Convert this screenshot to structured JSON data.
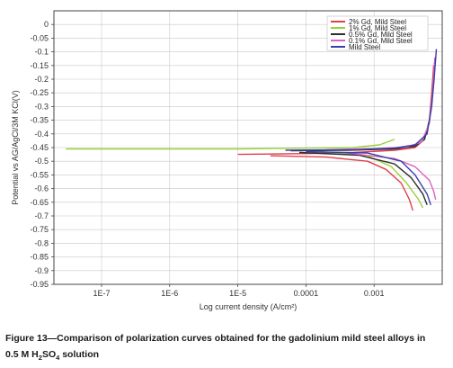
{
  "chart_data": {
    "type": "line",
    "title": "",
    "xlabel": "Log current density (A/cm²)",
    "ylabel": "Potential vs AG/AgCl/3M KCl(V)",
    "xscale": "log",
    "xlim": [
      2e-08,
      0.01
    ],
    "ylim": [
      -0.95,
      0.05
    ],
    "x_ticks": [
      1e-07,
      1e-06,
      1e-05,
      0.0001,
      0.001
    ],
    "x_tick_labels": [
      "1E-7",
      "1E-6",
      "1E-5",
      "0.0001",
      "0.001"
    ],
    "y_ticks": [
      0,
      -0.05,
      -0.1,
      -0.15,
      -0.2,
      -0.25,
      -0.3,
      -0.35,
      -0.4,
      -0.45,
      -0.5,
      -0.55,
      -0.6,
      -0.65,
      -0.7,
      -0.75,
      -0.8,
      -0.85,
      -0.9,
      -0.95
    ],
    "y_tick_labels": [
      "0",
      "-0.05",
      "-0.1",
      "-0.15",
      "-0.2",
      "-0.25",
      "-0.3",
      "-0.35",
      "-0.4",
      "-0.45",
      "-0.5",
      "-0.55",
      "-0.6",
      "-0.65",
      "-0.7",
      "-0.75",
      "-0.8",
      "-0.85",
      "-0.9",
      "-0.95"
    ],
    "grid": true,
    "legend_position": "top-right",
    "series": [
      {
        "name": "2% Gd, Mild Steel",
        "color": "#e0404a",
        "anodic": [
          [
            1e-05,
            -0.475
          ],
          [
            0.0001,
            -0.472
          ],
          [
            0.0005,
            -0.468
          ],
          [
            0.002,
            -0.46
          ],
          [
            0.004,
            -0.45
          ],
          [
            0.0055,
            -0.42
          ],
          [
            0.0065,
            -0.35
          ],
          [
            0.007,
            -0.25
          ],
          [
            0.0075,
            -0.15
          ]
        ],
        "cathodic": [
          [
            3e-05,
            -0.48
          ],
          [
            0.0002,
            -0.485
          ],
          [
            0.0008,
            -0.5
          ],
          [
            0.0015,
            -0.53
          ],
          [
            0.0025,
            -0.58
          ],
          [
            0.0033,
            -0.64
          ],
          [
            0.0037,
            -0.68
          ]
        ]
      },
      {
        "name": "1% Gd, Mild Steel",
        "color": "#9ad03a",
        "anodic": [
          [
            3e-08,
            -0.455
          ],
          [
            1e-06,
            -0.455
          ],
          [
            1e-05,
            -0.455
          ],
          [
            0.0001,
            -0.452
          ],
          [
            0.0005,
            -0.45
          ],
          [
            0.0012,
            -0.44
          ],
          [
            0.002,
            -0.42
          ]
        ],
        "cathodic": [
          [
            0.0001,
            -0.46
          ],
          [
            0.0008,
            -0.48
          ],
          [
            0.0018,
            -0.52
          ],
          [
            0.003,
            -0.58
          ],
          [
            0.0045,
            -0.64
          ],
          [
            0.0052,
            -0.67
          ]
        ]
      },
      {
        "name": "0.5% Gd, Mild Steel",
        "color": "#2d2d2d",
        "anodic": [
          [
            6e-05,
            -0.462
          ],
          [
            0.0004,
            -0.46
          ],
          [
            0.002,
            -0.455
          ],
          [
            0.004,
            -0.445
          ],
          [
            0.0055,
            -0.42
          ],
          [
            0.0065,
            -0.35
          ],
          [
            0.0072,
            -0.25
          ],
          [
            0.0078,
            -0.15
          ]
        ],
        "cathodic": [
          [
            8e-05,
            -0.468
          ],
          [
            0.0006,
            -0.478
          ],
          [
            0.002,
            -0.51
          ],
          [
            0.0035,
            -0.56
          ],
          [
            0.0052,
            -0.62
          ],
          [
            0.006,
            -0.66
          ]
        ]
      },
      {
        "name": "0.1% Gd, Mild Steel",
        "color": "#e060c0",
        "anodic": [
          [
            0.0002,
            -0.458
          ],
          [
            0.001,
            -0.454
          ],
          [
            0.003,
            -0.448
          ],
          [
            0.005,
            -0.43
          ],
          [
            0.0065,
            -0.36
          ],
          [
            0.0072,
            -0.25
          ],
          [
            0.0078,
            -0.12
          ]
        ],
        "cathodic": [
          [
            0.0004,
            -0.47
          ],
          [
            0.002,
            -0.49
          ],
          [
            0.004,
            -0.52
          ],
          [
            0.0065,
            -0.57
          ],
          [
            0.0075,
            -0.61
          ],
          [
            0.008,
            -0.64
          ]
        ]
      },
      {
        "name": "Mild Steel",
        "color": "#3a3fa8",
        "anodic": [
          [
            5e-05,
            -0.46
          ],
          [
            0.0005,
            -0.458
          ],
          [
            0.002,
            -0.452
          ],
          [
            0.004,
            -0.44
          ],
          [
            0.006,
            -0.4
          ],
          [
            0.007,
            -0.3
          ],
          [
            0.0076,
            -0.2
          ],
          [
            0.0082,
            -0.09
          ]
        ],
        "cathodic": [
          [
            0.0001,
            -0.465
          ],
          [
            0.0008,
            -0.47
          ],
          [
            0.0025,
            -0.5
          ],
          [
            0.004,
            -0.55
          ],
          [
            0.006,
            -0.62
          ],
          [
            0.0068,
            -0.66
          ]
        ]
      }
    ]
  },
  "caption": {
    "line1": "Figure 13—Comparison of polarization curves obtained for the gadolinium mild steel alloys in",
    "line2_prefix": "0.5 M H",
    "line2_sub1": "2",
    "line2_mid": "SO",
    "line2_sub2": "4",
    "line2_suffix": " solution"
  }
}
